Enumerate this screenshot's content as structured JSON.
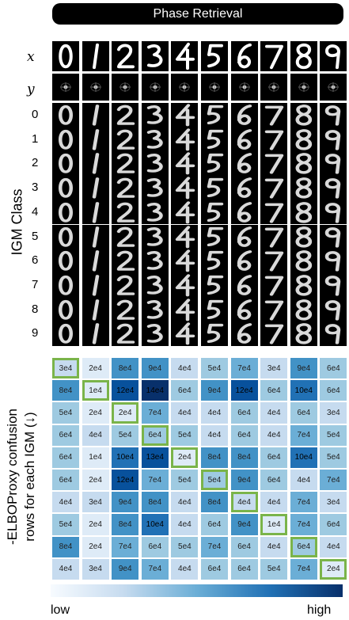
{
  "title": "Phase Retrieval",
  "row_labels": {
    "x": "x",
    "y": "y"
  },
  "digits": [
    "0",
    "1",
    "2",
    "3",
    "4",
    "5",
    "6",
    "7",
    "8",
    "9"
  ],
  "igm_label": "IGM Class",
  "confusion_label_line1": "-ELBOProxy confusion",
  "confusion_label_line2": "rows for each IGM (↓)",
  "matrix": [
    [
      "3e4",
      "2e4",
      "8e4",
      "9e4",
      "4e4",
      "5e4",
      "7e4",
      "3e4",
      "9e4",
      "6e4"
    ],
    [
      "8e4",
      "1e4",
      "12e4",
      "14e4",
      "6e4",
      "9e4",
      "12e4",
      "6e4",
      "10e4",
      "6e4"
    ],
    [
      "5e4",
      "2e4",
      "2e4",
      "7e4",
      "4e4",
      "4e4",
      "6e4",
      "4e4",
      "6e4",
      "3e4"
    ],
    [
      "6e4",
      "4e4",
      "5e4",
      "6e4",
      "5e4",
      "4e4",
      "6e4",
      "4e4",
      "7e4",
      "5e4"
    ],
    [
      "6e4",
      "1e4",
      "10e4",
      "13e4",
      "2e4",
      "8e4",
      "8e4",
      "6e4",
      "10e4",
      "5e4"
    ],
    [
      "6e4",
      "2e4",
      "12e4",
      "7e4",
      "5e4",
      "5e4",
      "9e4",
      "6e4",
      "4e4",
      "7e4"
    ],
    [
      "4e4",
      "3e4",
      "9e4",
      "8e4",
      "4e4",
      "8e4",
      "4e4",
      "4e4",
      "7e4",
      "3e4"
    ],
    [
      "5e4",
      "2e4",
      "8e4",
      "10e4",
      "4e4",
      "6e4",
      "9e4",
      "1e4",
      "7e4",
      "6e4"
    ],
    [
      "8e4",
      "2e4",
      "7e4",
      "6e4",
      "5e4",
      "7e4",
      "6e4",
      "4e4",
      "6e4",
      "4e4"
    ],
    [
      "4e4",
      "3e4",
      "9e4",
      "7e4",
      "4e4",
      "6e4",
      "6e4",
      "5e4",
      "7e4",
      "2e4"
    ]
  ],
  "colorbar": {
    "low": "low",
    "high": "high",
    "colors": [
      "#f7fbff",
      "#deebf7",
      "#c6dbef",
      "#9ecae1",
      "#6baed6",
      "#4292c6",
      "#2171b5",
      "#08519c",
      "#08306b"
    ]
  },
  "highlight_color": "#7ab44a"
}
